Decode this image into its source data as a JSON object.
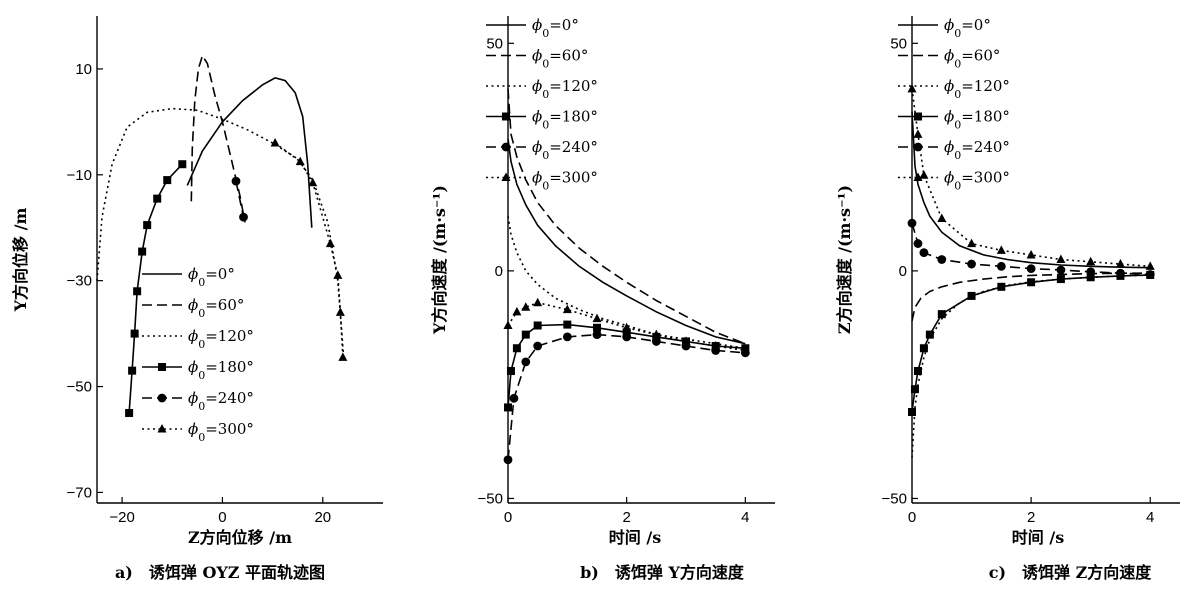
{
  "legend_labels": [
    "ϕ0=0°",
    "ϕ0=60°",
    "ϕ0=120°",
    "ϕ0=180°",
    "ϕ0=240°",
    "ϕ0=300°"
  ],
  "chart_data": [
    {
      "type": "line",
      "caption": "a)　诱饵弹 OYZ 平面轨迹图",
      "xlabel": "Z方向位移 /m",
      "ylabel": "Y方向位移 /m",
      "xlim": [
        -25,
        32
      ],
      "ylim": [
        -72,
        20
      ],
      "xticks": [
        -20,
        0,
        20
      ],
      "yticks": [
        10,
        -10,
        -30,
        -50,
        -70
      ],
      "legend_position": "bottom-right",
      "series": [
        {
          "name": "ϕ0=0°",
          "style": "solid",
          "marker": "none",
          "x": [
            -7,
            -4,
            0,
            4,
            8,
            10.5,
            12.5,
            14.5,
            16,
            17,
            17.8
          ],
          "y": [
            -12,
            -5.5,
            0,
            4,
            7,
            8.3,
            7.8,
            5.5,
            1,
            -8,
            -20
          ]
        },
        {
          "name": "ϕ0=60°",
          "style": "dashed",
          "marker": "none",
          "x": [
            -6.2,
            -6,
            -5.5,
            -4.8,
            -4,
            -3,
            -1.5,
            0,
            2,
            3.5,
            4.5
          ],
          "y": [
            -15,
            -5,
            4,
            10,
            12.5,
            11,
            5,
            0,
            -8,
            -14,
            -19
          ]
        },
        {
          "name": "ϕ0=120°",
          "style": "dotted",
          "marker": "none",
          "x": [
            -25,
            -24,
            -22,
            -19,
            -15,
            -10,
            -5,
            0,
            5,
            10,
            15,
            18,
            21,
            23,
            24.2
          ],
          "y": [
            -30,
            -18,
            -8,
            -1,
            1.8,
            2.5,
            2.2,
            0.5,
            -1.5,
            -4,
            -7,
            -11,
            -19,
            -30,
            -45
          ]
        },
        {
          "name": "ϕ0=180°",
          "style": "solid",
          "marker": "square",
          "x": [
            -8,
            -11,
            -13,
            -15,
            -16,
            -17,
            -17.5,
            -18,
            -18.6
          ],
          "y": [
            -8,
            -11,
            -14.5,
            -19.5,
            -24.5,
            -32,
            -40,
            -47,
            -55
          ]
        },
        {
          "name": "ϕ0=240°",
          "style": "dashed",
          "marker": "circle",
          "x": [
            2.7,
            4.2
          ],
          "y": [
            -11.2,
            -18
          ]
        },
        {
          "name": "ϕ0=300°",
          "style": "dotted",
          "marker": "triangle",
          "x": [
            10.5,
            15.5,
            18,
            21.5,
            23,
            23.5,
            24
          ],
          "y": [
            -4,
            -7.5,
            -11.5,
            -23,
            -29,
            -36,
            -44.5
          ]
        }
      ]
    },
    {
      "type": "line",
      "caption": "b)　诱饵弹 Y方向速度",
      "xlabel": "时间 /s",
      "ylabel": "Y方向速度 /(m·s⁻¹)",
      "xlim": [
        0,
        4.5
      ],
      "ylim": [
        -51,
        56
      ],
      "xticks": [
        0,
        2,
        4
      ],
      "yticks": [
        50,
        0,
        -50
      ],
      "legend_position": "top-right",
      "series": [
        {
          "name": "ϕ0=0°",
          "style": "solid",
          "marker": "none",
          "x": [
            0,
            0.05,
            0.15,
            0.3,
            0.5,
            0.8,
            1.2,
            1.6,
            2,
            2.5,
            3,
            3.5,
            4
          ],
          "y": [
            29,
            24,
            19,
            14.5,
            10,
            5.5,
            1,
            -2.5,
            -5.5,
            -9,
            -12,
            -14.5,
            -16
          ]
        },
        {
          "name": "ϕ0=60°",
          "style": "dashed",
          "marker": "none",
          "x": [
            0,
            0.05,
            0.15,
            0.3,
            0.5,
            0.8,
            1.2,
            1.6,
            2,
            2.5,
            3,
            3.5,
            4
          ],
          "y": [
            40,
            30,
            25,
            20,
            15,
            10,
            5,
            1,
            -2.5,
            -6.5,
            -10,
            -13.5,
            -16
          ]
        },
        {
          "name": "ϕ0=120°",
          "style": "dotted",
          "marker": "none",
          "x": [
            0,
            0.05,
            0.15,
            0.3,
            0.5,
            0.8,
            1.2,
            1.6,
            2,
            2.5,
            3,
            3.5,
            4
          ],
          "y": [
            12,
            8,
            4,
            0,
            -3,
            -6,
            -8.5,
            -10.5,
            -12,
            -14,
            -15,
            -16,
            -17
          ]
        },
        {
          "name": "ϕ0=180°",
          "style": "solid",
          "marker": "square",
          "x": [
            0,
            0.05,
            0.15,
            0.3,
            0.5,
            1,
            1.5,
            2,
            2.5,
            3,
            3.5,
            4
          ],
          "y": [
            -30,
            -22,
            -17,
            -14,
            -12,
            -11.8,
            -12.5,
            -13.5,
            -14.5,
            -15.5,
            -16.5,
            -17
          ]
        },
        {
          "name": "ϕ0=240°",
          "style": "dashed",
          "marker": "circle",
          "x": [
            0,
            0.1,
            0.3,
            0.5,
            1,
            1.5,
            2,
            2.5,
            3,
            3.5,
            4
          ],
          "y": [
            -41.5,
            -28,
            -20,
            -16.5,
            -14.5,
            -14,
            -14.5,
            -15.5,
            -16.5,
            -17.5,
            -18
          ]
        },
        {
          "name": "ϕ0=300°",
          "style": "dotted",
          "marker": "triangle",
          "x": [
            0,
            0.15,
            0.3,
            0.5,
            1,
            1.5,
            2,
            2.5,
            3,
            3.5,
            4
          ],
          "y": [
            -12,
            -9,
            -8,
            -7,
            -8.5,
            -10.5,
            -12.5,
            -14,
            -15.5,
            -16.5,
            -17.5
          ]
        }
      ]
    },
    {
      "type": "line",
      "caption": "c)　诱饵弹 Z方向速度",
      "xlabel": "时间 /s",
      "ylabel": "Z方向速度 /(m·s⁻¹)",
      "xlim": [
        0,
        4.5
      ],
      "ylim": [
        -51,
        56
      ],
      "xticks": [
        0,
        2,
        4
      ],
      "yticks": [
        50,
        0,
        -50
      ],
      "legend_position": "top-right",
      "series": [
        {
          "name": "ϕ0=0°",
          "style": "solid",
          "marker": "none",
          "x": [
            0,
            0.05,
            0.1,
            0.2,
            0.3,
            0.5,
            0.8,
            1.2,
            1.6,
            2,
            2.5,
            3,
            3.5,
            4
          ],
          "y": [
            35,
            23,
            19,
            15,
            12,
            8.5,
            5.5,
            3.5,
            2.5,
            1.8,
            1.3,
            1,
            0.8,
            0.7
          ]
        },
        {
          "name": "ϕ0=60°",
          "style": "dashed",
          "marker": "none",
          "x": [
            0,
            0.05,
            0.15,
            0.3,
            0.5,
            0.8,
            1.2,
            1.6,
            2,
            2.5,
            3,
            3.5,
            4
          ],
          "y": [
            -11,
            -8,
            -6,
            -4.5,
            -3.5,
            -2.5,
            -1.8,
            -1.3,
            -1,
            -0.8,
            -0.6,
            -0.5,
            -0.5
          ]
        },
        {
          "name": "ϕ0=120°",
          "style": "dotted",
          "marker": "none",
          "x": [
            0,
            0.05,
            0.1,
            0.2,
            0.3,
            0.5,
            0.8,
            1.2,
            1.6,
            2,
            2.5,
            3,
            3.5,
            4
          ],
          "y": [
            -41,
            -30,
            -25,
            -19,
            -15,
            -10.5,
            -7,
            -4.5,
            -3.2,
            -2.4,
            -1.8,
            -1.4,
            -1.1,
            -0.9
          ]
        },
        {
          "name": "ϕ0=180°",
          "style": "solid",
          "marker": "square",
          "x": [
            0,
            0.05,
            0.1,
            0.2,
            0.3,
            0.5,
            1,
            1.5,
            2,
            2.5,
            3,
            3.5,
            4
          ],
          "y": [
            -31,
            -26,
            -22,
            -17,
            -14,
            -9.5,
            -5.5,
            -3.5,
            -2.5,
            -1.8,
            -1.4,
            -1.1,
            -0.9
          ]
        },
        {
          "name": "ϕ0=240°",
          "style": "dashed",
          "marker": "circle",
          "x": [
            0,
            0.1,
            0.2,
            0.5,
            1,
            1.5,
            2,
            2.5,
            3,
            3.5,
            4
          ],
          "y": [
            10.5,
            6,
            4,
            2.5,
            1.5,
            1,
            0.5,
            0.2,
            -0.2,
            -0.5,
            -0.8
          ]
        },
        {
          "name": "ϕ0=300°",
          "style": "dotted",
          "marker": "triangle",
          "x": [
            0,
            0.1,
            0.2,
            0.5,
            1,
            1.5,
            2,
            2.5,
            3,
            3.5,
            4
          ],
          "y": [
            40,
            30,
            21,
            11.5,
            6,
            4.5,
            3.5,
            2.5,
            2,
            1.5,
            1
          ]
        }
      ]
    }
  ]
}
